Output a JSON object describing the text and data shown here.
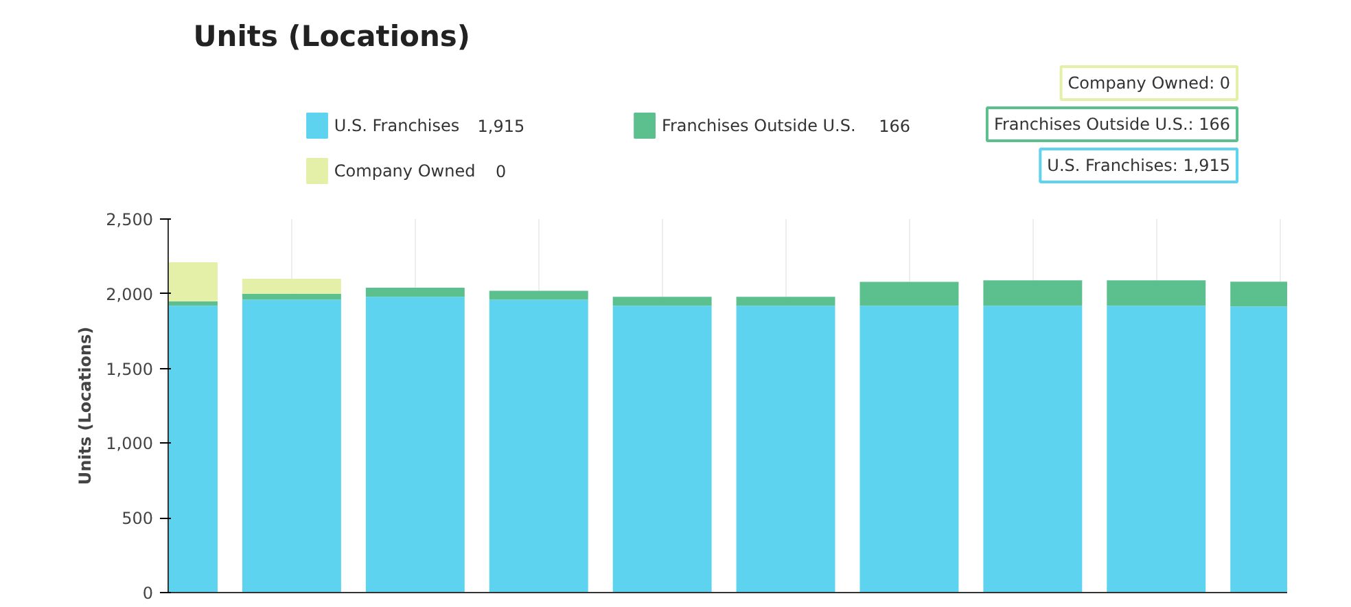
{
  "chart_data": {
    "type": "bar",
    "title": "Units (Locations)",
    "ylabel": "Units (Locations)",
    "stacked": true,
    "categories": [
      null,
      null,
      null,
      null,
      null,
      null,
      null,
      null,
      null,
      null
    ],
    "series": [
      {
        "name": "U.S. Franchises",
        "color": "#5dd3ef",
        "values": [
          1920,
          1960,
          1980,
          1960,
          1920,
          1920,
          1920,
          1920,
          1920,
          1915
        ]
      },
      {
        "name": "Franchises Outside U.S.",
        "color": "#5cc08e",
        "values": [
          30,
          40,
          60,
          60,
          60,
          60,
          160,
          170,
          170,
          166
        ]
      },
      {
        "name": "Company Owned",
        "color": "#e4f0a8",
        "values": [
          260,
          100,
          0,
          0,
          0,
          0,
          0,
          0,
          0,
          0
        ]
      }
    ],
    "ylim": [
      0,
      2500
    ],
    "yticks": [
      0,
      500,
      {
        "value": 1000,
        "label": "1,000"
      },
      {
        "value": 1500,
        "label": "1,500"
      },
      {
        "value": 2000,
        "label": "2,000"
      },
      {
        "value": 2500,
        "label": "2,500"
      }
    ],
    "grid": "x",
    "legend": "top",
    "annotations": [
      "1,915",
      "166",
      "0",
      "Company Owned: 0",
      "Franchises Outside U.S.: 166",
      "U.S. Franchises: 1,915"
    ]
  }
}
